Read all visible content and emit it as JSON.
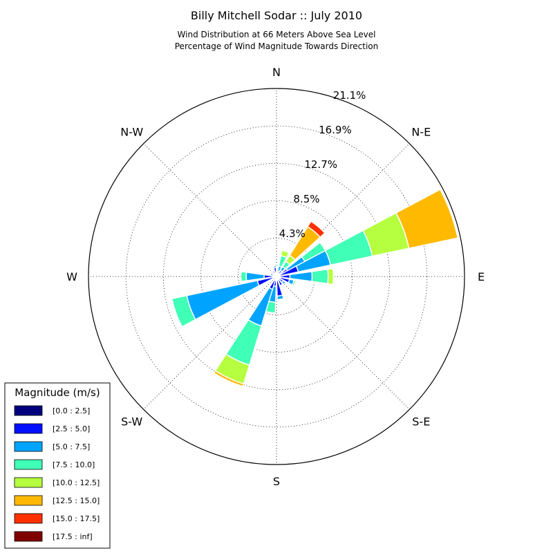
{
  "chart_data": {
    "type": "windrose",
    "title": "Billy Mitchell Sodar :: July 2010",
    "subtitle_lines": [
      "Wind Distribution at 66 Meters Above Sea Level",
      "Percentage of Wind Magnitude Towards Direction"
    ],
    "directions": [
      "N",
      "N-E",
      "E",
      "S-E",
      "S",
      "S-W",
      "W",
      "N-W"
    ],
    "radial_ticks": [
      "4.3%",
      "8.5%",
      "12.7%",
      "16.9%",
      "21.1%"
    ],
    "radial_tick_values": [
      4.3,
      8.5,
      12.7,
      16.9,
      21.1
    ],
    "rmax": 21.1,
    "legend_title": "Magnitude (m/s)",
    "bins": [
      {
        "label": "[0.0 : 2.5]",
        "color": "#00007f"
      },
      {
        "label": "[2.5 : 5.0]",
        "color": "#0010ff"
      },
      {
        "label": "[5.0 : 7.5]",
        "color": "#00a4ff"
      },
      {
        "label": "[7.5 : 10.0]",
        "color": "#40ffb6"
      },
      {
        "label": "[10.0 : 12.5]",
        "color": "#b6ff40"
      },
      {
        "label": "[12.5 : 15.0]",
        "color": "#ffb900"
      },
      {
        "label": "[15.0 : 17.5]",
        "color": "#ff3000"
      },
      {
        "label": "[17.5 : inf]",
        "color": "#7f0000"
      }
    ],
    "sector_width_deg": 18,
    "sector_gap_deg": 2,
    "sectors": [
      {
        "dir": 0,
        "cum": [
          0.3,
          0.6,
          0.7
        ]
      },
      {
        "dir": 20,
        "cum": [
          0.3,
          0.6,
          1.2,
          2.4,
          3.0
        ]
      },
      {
        "dir": 40,
        "cum": [
          0.4,
          0.8,
          1.3,
          2.0,
          2.8,
          6.6,
          7.3
        ]
      },
      {
        "dir": 60,
        "cum": [
          0.4,
          1.4,
          3.6,
          6.2
        ]
      },
      {
        "dir": 70,
        "cum": [
          0.4,
          2.5,
          6.2,
          11.0,
          15.2,
          20.8
        ]
      },
      {
        "dir": 90,
        "cum": [
          0.4,
          1.5,
          4.0,
          5.8,
          6.4
        ]
      },
      {
        "dir": 110,
        "cum": [
          0.4,
          1.5,
          2.0,
          2.2
        ]
      },
      {
        "dir": 130,
        "cum": [
          0.3,
          0.9,
          1.2
        ]
      },
      {
        "dir": 150,
        "cum": [
          0.4,
          1.1,
          1.2
        ]
      },
      {
        "dir": 170,
        "cum": [
          0.4,
          2.2,
          2.6
        ]
      },
      {
        "dir": 190,
        "cum": [
          0.4,
          1.1,
          2.9,
          4.1
        ]
      },
      {
        "dir": 205,
        "cum": [
          0.4,
          1.5,
          5.8,
          10.4,
          12.6,
          12.9
        ]
      },
      {
        "dir": 250,
        "cum": [
          0.4,
          2.2,
          10.3,
          12.0
        ]
      },
      {
        "dir": 270,
        "cum": [
          0.4,
          1.4,
          3.4,
          4.0
        ]
      },
      {
        "dir": 290,
        "cum": [
          0.3,
          0.7
        ]
      },
      {
        "dir": 310,
        "cum": [
          0.3,
          0.6,
          0.7
        ]
      },
      {
        "dir": 330,
        "cum": [
          0.3,
          0.7
        ]
      },
      {
        "dir": 350,
        "cum": [
          0.3,
          1.0,
          1.2
        ]
      }
    ]
  }
}
